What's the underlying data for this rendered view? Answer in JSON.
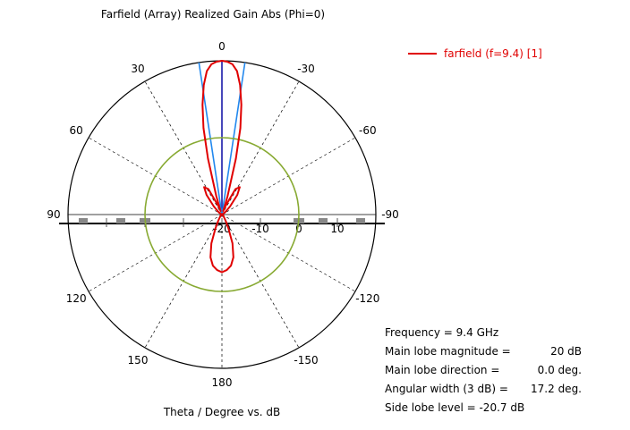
{
  "chart_data": {
    "type": "polar",
    "title": "Farfield (Array) Realized Gain Abs (Phi=0)",
    "xlabel": "Theta / Degree vs. dB",
    "angle_unit": "deg",
    "angle_zero": "top",
    "angle_direction": "counterclockwise-positive",
    "angle_ticks": [
      {
        "angle": 0,
        "label": "0"
      },
      {
        "angle": 30,
        "label": "30"
      },
      {
        "angle": 60,
        "label": "60"
      },
      {
        "angle": 90,
        "label": "90"
      },
      {
        "angle": 120,
        "label": "120"
      },
      {
        "angle": 150,
        "label": "150"
      },
      {
        "angle": 180,
        "label": "180"
      },
      {
        "angle": -30,
        "label": "-30"
      },
      {
        "angle": -60,
        "label": "-60"
      },
      {
        "angle": -90,
        "label": "-90"
      },
      {
        "angle": -120,
        "label": "-120"
      },
      {
        "angle": -150,
        "label": "-150"
      }
    ],
    "radial_ticks": [
      {
        "value": -20,
        "label": "-20"
      },
      {
        "value": -10,
        "label": "-10"
      },
      {
        "value": 0,
        "label": "0"
      },
      {
        "value": 10,
        "label": "10"
      }
    ],
    "rlim": [
      -20,
      20
    ],
    "grid": true,
    "legend_position": "top-right",
    "series": [
      {
        "name": "farfield (f=9.4) [1]",
        "color": "#e00000",
        "points": [
          {
            "theta": -180,
            "r": -5
          },
          {
            "theta": -175,
            "r": -5.5
          },
          {
            "theta": -170,
            "r": -6.5
          },
          {
            "theta": -165,
            "r": -8.5
          },
          {
            "theta": -160,
            "r": -12
          },
          {
            "theta": -155,
            "r": -16
          },
          {
            "theta": -150,
            "r": -18
          },
          {
            "theta": -130,
            "r": -19.5
          },
          {
            "theta": -100,
            "r": -20
          },
          {
            "theta": -80,
            "r": -20
          },
          {
            "theta": -55,
            "r": -19
          },
          {
            "theta": -45,
            "r": -17
          },
          {
            "theta": -38,
            "r": -13.5
          },
          {
            "theta": -33,
            "r": -11.5
          },
          {
            "theta": -28,
            "r": -12.5
          },
          {
            "theta": -23,
            "r": -17.5
          },
          {
            "theta": -20,
            "r": -19
          },
          {
            "theta": -17,
            "r": -15
          },
          {
            "theta": -14,
            "r": -5
          },
          {
            "theta": -12,
            "r": 3
          },
          {
            "theta": -10,
            "r": 9
          },
          {
            "theta": -8,
            "r": 14
          },
          {
            "theta": -6,
            "r": 17.5
          },
          {
            "theta": -4,
            "r": 19.2
          },
          {
            "theta": -2,
            "r": 19.8
          },
          {
            "theta": 0,
            "r": 20
          },
          {
            "theta": 2,
            "r": 19.8
          },
          {
            "theta": 4,
            "r": 19.2
          },
          {
            "theta": 6,
            "r": 17.5
          },
          {
            "theta": 8,
            "r": 14
          },
          {
            "theta": 10,
            "r": 9
          },
          {
            "theta": 12,
            "r": 3
          },
          {
            "theta": 14,
            "r": -5
          },
          {
            "theta": 17,
            "r": -15
          },
          {
            "theta": 20,
            "r": -19
          },
          {
            "theta": 23,
            "r": -17.5
          },
          {
            "theta": 28,
            "r": -12.5
          },
          {
            "theta": 33,
            "r": -11.5
          },
          {
            "theta": 38,
            "r": -13.5
          },
          {
            "theta": 45,
            "r": -17
          },
          {
            "theta": 55,
            "r": -19
          },
          {
            "theta": 80,
            "r": -20
          },
          {
            "theta": 100,
            "r": -20
          },
          {
            "theta": 130,
            "r": -19.5
          },
          {
            "theta": 150,
            "r": -18
          },
          {
            "theta": 155,
            "r": -16
          },
          {
            "theta": 160,
            "r": -12
          },
          {
            "theta": 165,
            "r": -8.5
          },
          {
            "theta": 170,
            "r": -6.5
          },
          {
            "theta": 175,
            "r": -5.5
          },
          {
            "theta": 180,
            "r": -5
          }
        ]
      }
    ],
    "reference_lines": [
      {
        "kind": "main-lobe-direction",
        "theta": 0,
        "color": "#1a1aaa"
      },
      {
        "kind": "3dB-beamwidth-edge",
        "theta": 8.6,
        "color": "#2288ee"
      },
      {
        "kind": "3dB-beamwidth-edge",
        "theta": -8.6,
        "color": "#2288ee"
      },
      {
        "kind": "side-lobe-level-circle",
        "r": 0,
        "color": "#88aa33"
      }
    ],
    "info_lines": [
      {
        "label": "Frequency = 9.4 GHz",
        "value": ""
      },
      {
        "label": "Main lobe magnitude =",
        "value": "20 dB"
      },
      {
        "label": "Main lobe direction =",
        "value": "0.0 deg."
      },
      {
        "label": "Angular width (3 dB) =",
        "value": "17.2 deg."
      },
      {
        "label": "Side lobe level = -20.7 dB",
        "value": ""
      }
    ]
  }
}
